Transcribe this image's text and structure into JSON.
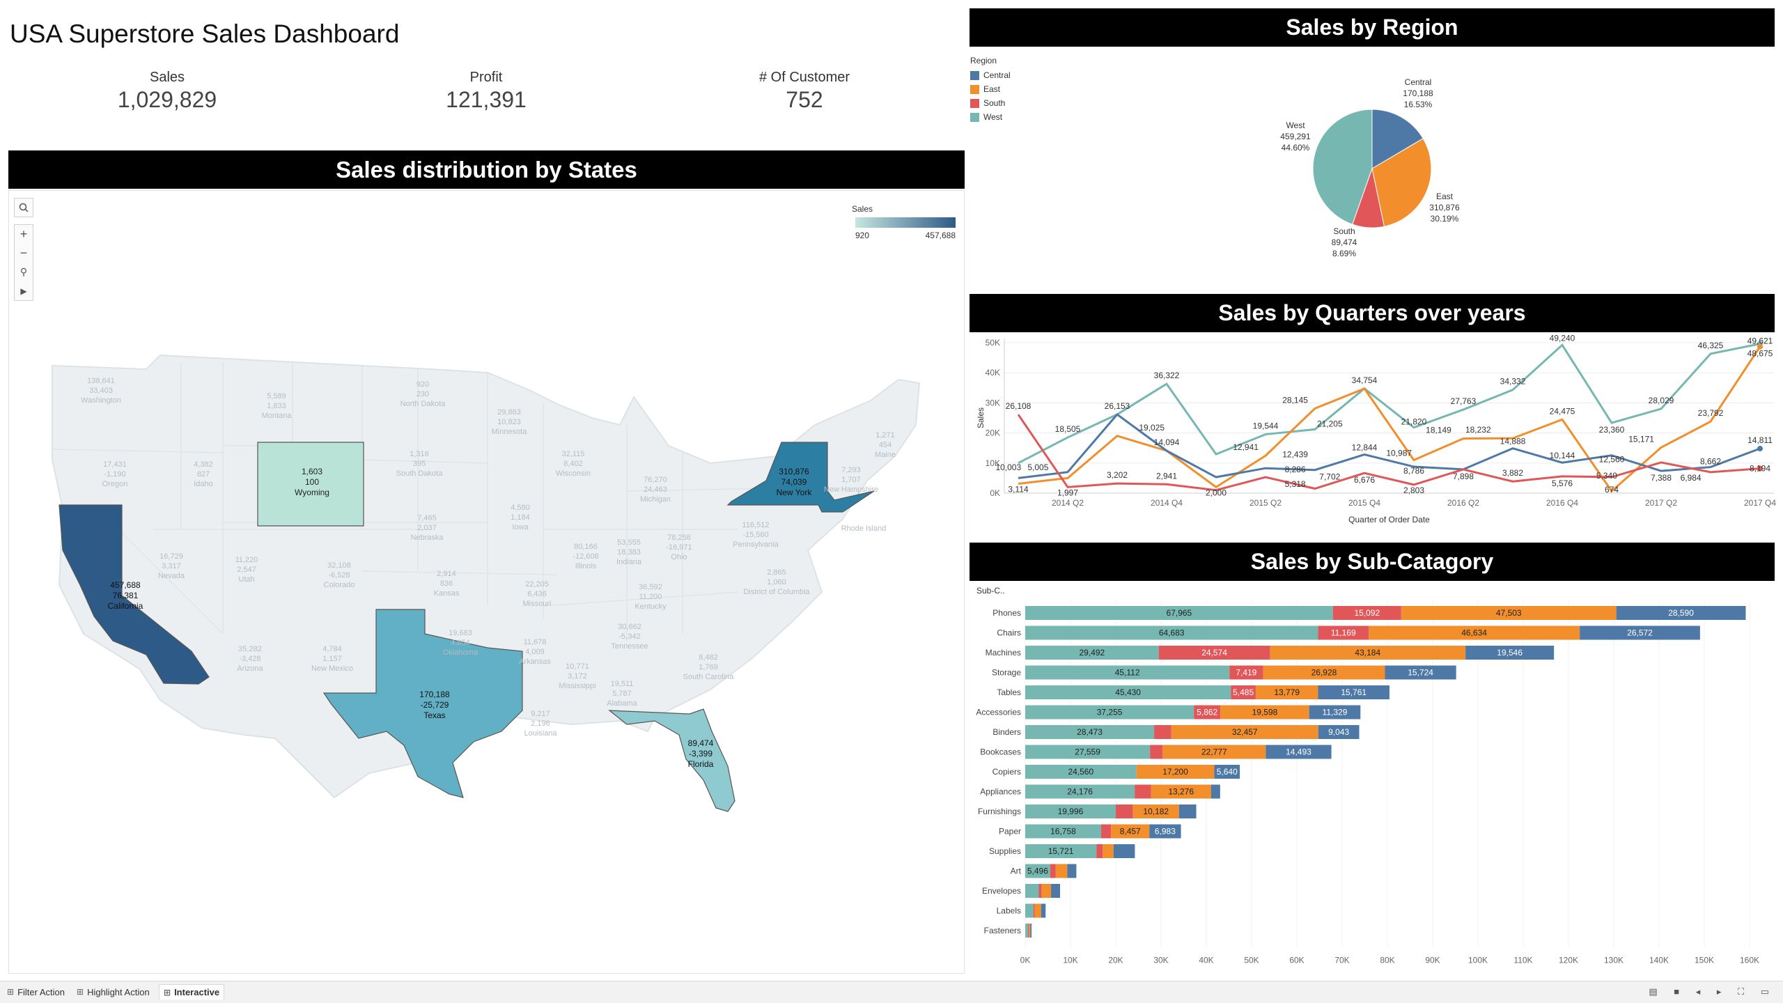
{
  "dashboard": {
    "title": "USA Superstore Sales Dashboard"
  },
  "kpis": [
    {
      "label": "Sales",
      "value": "1,029,829"
    },
    {
      "label": "Profit",
      "value": "121,391"
    },
    {
      "label": "# Of Customer",
      "value": "752"
    }
  ],
  "map": {
    "title": "Sales distribution by States",
    "legend_title": "Sales",
    "legend_min": "920",
    "legend_max": "457,688",
    "colors": {
      "low": "#c6e6de",
      "high": "#2e5a87",
      "faded": "#eceff1"
    },
    "highlighted_states": [
      {
        "name": "California",
        "sales": "457,688",
        "profit": "76,381"
      },
      {
        "name": "New York",
        "sales": "310,876",
        "profit": "74,039"
      },
      {
        "name": "Texas",
        "sales": "170,188",
        "profit": "-25,729"
      },
      {
        "name": "Florida",
        "sales": "89,474",
        "profit": "-3,399"
      },
      {
        "name": "Wyoming",
        "sales": "1,603",
        "profit": "100"
      }
    ],
    "faded_states": [
      {
        "name": "Washington",
        "sales": "138,641",
        "profit": "33,403"
      },
      {
        "name": "Oregon",
        "sales": "17,431",
        "profit": "-1,190"
      },
      {
        "name": "Idaho",
        "sales": "4,382",
        "profit": "827"
      },
      {
        "name": "Montana",
        "sales": "5,589",
        "profit": "1,833"
      },
      {
        "name": "North Dakota",
        "sales": "920",
        "profit": "230"
      },
      {
        "name": "South Dakota",
        "sales": "1,316",
        "profit": "395"
      },
      {
        "name": "Minnesota",
        "sales": "29,863",
        "profit": "10,823"
      },
      {
        "name": "Wisconsin",
        "sales": "32,115",
        "profit": "8,402"
      },
      {
        "name": "Michigan",
        "sales": "76,270",
        "profit": "24,463"
      },
      {
        "name": "Nebraska",
        "sales": "7,465",
        "profit": "2,037"
      },
      {
        "name": "Iowa",
        "sales": "4,580",
        "profit": "1,184"
      },
      {
        "name": "Illinois",
        "sales": "80,166",
        "profit": "-12,608"
      },
      {
        "name": "Indiana",
        "sales": "53,555",
        "profit": "18,383"
      },
      {
        "name": "Ohio",
        "sales": "78,258",
        "profit": "-16,971"
      },
      {
        "name": "Pennsylvania",
        "sales": "116,512",
        "profit": "-15,560"
      },
      {
        "name": "Nevada",
        "sales": "16,729",
        "profit": "3,317"
      },
      {
        "name": "Utah",
        "sales": "11,220",
        "profit": "2,547"
      },
      {
        "name": "Colorado",
        "sales": "32,108",
        "profit": "-6,528"
      },
      {
        "name": "Kansas",
        "sales": "2,914",
        "profit": "836"
      },
      {
        "name": "Missouri",
        "sales": "22,205",
        "profit": "6,436"
      },
      {
        "name": "Kentucky",
        "sales": "36,592",
        "profit": "11,200"
      },
      {
        "name": "Arizona",
        "sales": "35,282",
        "profit": "-3,428"
      },
      {
        "name": "New Mexico",
        "sales": "4,784",
        "profit": "1,157"
      },
      {
        "name": "Oklahoma",
        "sales": "19,683",
        "profit": "4,854"
      },
      {
        "name": "Arkansas",
        "sales": "11,678",
        "profit": "4,009"
      },
      {
        "name": "Tennessee",
        "sales": "30,662",
        "profit": "-5,342"
      },
      {
        "name": "Mississippi",
        "sales": "10,771",
        "profit": "3,172"
      },
      {
        "name": "Alabama",
        "sales": "19,511",
        "profit": "5,787"
      },
      {
        "name": "Louisiana",
        "sales": "9,217",
        "profit": "2,196"
      },
      {
        "name": "South Carolina",
        "sales": "8,482",
        "profit": "1,769"
      },
      {
        "name": "Maine",
        "sales": "1,271",
        "profit": "454"
      },
      {
        "name": "New Hampshire",
        "sales": "7,293",
        "profit": "1,707"
      },
      {
        "name": "Rhode Island",
        "sales": "",
        "profit": ""
      },
      {
        "name": "District of Columbia",
        "sales": "2,865",
        "profit": "1,060"
      }
    ]
  },
  "pie": {
    "title": "Sales by Region",
    "legend_title": "Region",
    "chart_data": {
      "type": "pie",
      "slices": [
        {
          "label": "Central",
          "value": 170188,
          "value_text": "170,188",
          "pct": "16.53%",
          "color": "#4e79a7"
        },
        {
          "label": "East",
          "value": 310876,
          "value_text": "310,876",
          "pct": "30.19%",
          "color": "#f28e2b"
        },
        {
          "label": "South",
          "value": 89474,
          "value_text": "89,474",
          "pct": "8.69%",
          "color": "#e15759"
        },
        {
          "label": "West",
          "value": 459291,
          "value_text": "459,291",
          "pct": "44.60%",
          "color": "#76b7b2"
        }
      ]
    }
  },
  "line": {
    "title": "Sales by Quarters over years",
    "chart_data": {
      "type": "line",
      "xlabel": "Quarter of Order Date",
      "ylabel": "Sales",
      "x_tick_labels": [
        "2014 Q2",
        "2014 Q4",
        "2015 Q2",
        "2015 Q4",
        "2016 Q2",
        "2016 Q4",
        "2017 Q2",
        "2017 Q4"
      ],
      "y_tick_labels": [
        "0K",
        "10K",
        "20K",
        "30K",
        "40K",
        "50K"
      ],
      "ylim": [
        0,
        50000
      ],
      "x": [
        "2014 Q1",
        "2014 Q2",
        "2014 Q3",
        "2014 Q4",
        "2015 Q1",
        "2015 Q2",
        "2015 Q3",
        "2015 Q4",
        "2016 Q1",
        "2016 Q2",
        "2016 Q3",
        "2016 Q4",
        "2017 Q1",
        "2017 Q2",
        "2017 Q3",
        "2017 Q4"
      ],
      "series": [
        {
          "color": "#76b7b2",
          "values": [
            10003,
            18505,
            26153,
            36322,
            12941,
            19544,
            21205,
            34754,
            21820,
            27763,
            34332,
            49240,
            23360,
            28029,
            46325,
            49621
          ]
        },
        {
          "color": "#f28e2b",
          "values": [
            3114,
            5005,
            19025,
            14094,
            2000,
            12439,
            28145,
            34754,
            10987,
            18149,
            18232,
            24475,
            674,
            15171,
            23792,
            48675
          ]
        },
        {
          "color": "#4e79a7",
          "values": [
            5005,
            7000,
            26153,
            14094,
            5318,
            8286,
            7702,
            12844,
            8786,
            7898,
            14888,
            10144,
            12560,
            7388,
            8662,
            14811
          ]
        },
        {
          "color": "#e15759",
          "values": [
            26108,
            1997,
            3202,
            2941,
            1000,
            5318,
            1500,
            6676,
            2803,
            7898,
            3882,
            5576,
            5340,
            10200,
            6984,
            8194
          ]
        }
      ],
      "data_labels": [
        {
          "t": "26,108",
          "xi": 0,
          "y": 26108,
          "dy": -8
        },
        {
          "t": "18,505",
          "xi": 1,
          "y": 18505,
          "dy": -8
        },
        {
          "t": "26,153",
          "xi": 2,
          "y": 26153,
          "dy": -8
        },
        {
          "t": "36,322",
          "xi": 3,
          "y": 36322,
          "dy": -8
        },
        {
          "t": "19,025",
          "xi": 2.7,
          "y": 19025,
          "dy": -8
        },
        {
          "t": "14,094",
          "xi": 3,
          "y": 14094,
          "dy": -8
        },
        {
          "t": "10,003",
          "xi": -0.2,
          "y": 10003,
          "dy": 10
        },
        {
          "t": "5,005",
          "xi": 0.4,
          "y": 10003,
          "dy": 10
        },
        {
          "t": "3,114",
          "xi": 0,
          "y": 3114,
          "dy": 12
        },
        {
          "t": "1,997",
          "xi": 1,
          "y": 1997,
          "dy": 12
        },
        {
          "t": "3,202",
          "xi": 2,
          "y": 3202,
          "dy": -8
        },
        {
          "t": "2,941",
          "xi": 3,
          "y": 2941,
          "dy": -8
        },
        {
          "t": "2,000",
          "xi": 4,
          "y": 2000,
          "dy": 12
        },
        {
          "t": "12,941",
          "xi": 4.6,
          "y": 12941,
          "dy": -6
        },
        {
          "t": "19,544",
          "xi": 5,
          "y": 19544,
          "dy": -8
        },
        {
          "t": "12,439",
          "xi": 5.6,
          "y": 12439,
          "dy": 2
        },
        {
          "t": "8,286",
          "xi": 5.6,
          "y": 8286,
          "dy": 6
        },
        {
          "t": "5,318",
          "xi": 5.6,
          "y": 5318,
          "dy": 14
        },
        {
          "t": "28,145",
          "xi": 5.6,
          "y": 28145,
          "dy": -8
        },
        {
          "t": "21,205",
          "xi": 6.3,
          "y": 21205,
          "dy": -4
        },
        {
          "t": "7,702",
          "xi": 6.3,
          "y": 7702,
          "dy": 14
        },
        {
          "t": "34,754",
          "xi": 7,
          "y": 34754,
          "dy": -8
        },
        {
          "t": "12,844",
          "xi": 7,
          "y": 12844,
          "dy": -6
        },
        {
          "t": "6,676",
          "xi": 7,
          "y": 6676,
          "dy": 14
        },
        {
          "t": "10,987",
          "xi": 7.7,
          "y": 10987,
          "dy": -6
        },
        {
          "t": "21,820",
          "xi": 8,
          "y": 21820,
          "dy": -4
        },
        {
          "t": "8,786",
          "xi": 8,
          "y": 8786,
          "dy": 10
        },
        {
          "t": "2,803",
          "xi": 8,
          "y": 2803,
          "dy": 12
        },
        {
          "t": "27,763",
          "xi": 9,
          "y": 27763,
          "dy": -8
        },
        {
          "t": "18,149",
          "xi": 8.5,
          "y": 18149,
          "dy": -8
        },
        {
          "t": "18,232",
          "xi": 9.3,
          "y": 18232,
          "dy": -8
        },
        {
          "t": "7,898",
          "xi": 9,
          "y": 7898,
          "dy": 14
        },
        {
          "t": "34,332",
          "xi": 10,
          "y": 34332,
          "dy": -8
        },
        {
          "t": "14,888",
          "xi": 10,
          "y": 14888,
          "dy": -6
        },
        {
          "t": "3,882",
          "xi": 10,
          "y": 3882,
          "dy": -8
        },
        {
          "t": "49,240",
          "xi": 11,
          "y": 49240,
          "dy": -6
        },
        {
          "t": "24,475",
          "xi": 11,
          "y": 24475,
          "dy": -8
        },
        {
          "t": "10,144",
          "xi": 11,
          "y": 10144,
          "dy": -6
        },
        {
          "t": "5,576",
          "xi": 11,
          "y": 5576,
          "dy": 14
        },
        {
          "t": "23,360",
          "xi": 12,
          "y": 23360,
          "dy": 14
        },
        {
          "t": "15,171",
          "xi": 12.6,
          "y": 15171,
          "dy": -8
        },
        {
          "t": "12,560",
          "xi": 12,
          "y": 12560,
          "dy": 10
        },
        {
          "t": "5,340",
          "xi": 11.9,
          "y": 5340,
          "dy": 2
        },
        {
          "t": "674",
          "xi": 12,
          "y": 674,
          "dy": 2
        },
        {
          "t": "28,029",
          "xi": 13,
          "y": 28029,
          "dy": -8
        },
        {
          "t": "7,388",
          "xi": 13,
          "y": 7388,
          "dy": 14
        },
        {
          "t": "8,662",
          "xi": 14,
          "y": 8662,
          "dy": -4
        },
        {
          "t": "6,984",
          "xi": 13.6,
          "y": 6984,
          "dy": 12
        },
        {
          "t": "46,325",
          "xi": 14,
          "y": 46325,
          "dy": -8
        },
        {
          "t": "23,792",
          "xi": 14,
          "y": 23792,
          "dy": -8
        },
        {
          "t": "49,621",
          "xi": 15,
          "y": 49621,
          "dy": 0
        },
        {
          "t": "48,675",
          "xi": 15,
          "y": 48675,
          "dy": 14
        },
        {
          "t": "14,811",
          "xi": 15,
          "y": 14811,
          "dy": -8
        },
        {
          "t": "8,194",
          "xi": 15,
          "y": 8194,
          "dy": 4
        }
      ]
    }
  },
  "bars": {
    "title": "Sales by Sub-Catagory",
    "header_label": "Sub-C..",
    "chart_data": {
      "type": "bar",
      "orientation": "horizontal-stacked",
      "xlabel": "Sales",
      "xlim": [
        0,
        160000
      ],
      "x_tick_labels": [
        "0K",
        "10K",
        "20K",
        "30K",
        "40K",
        "50K",
        "60K",
        "70K",
        "80K",
        "90K",
        "100K",
        "110K",
        "120K",
        "130K",
        "140K",
        "150K",
        "160K"
      ],
      "series_colors": {
        "West": "#76b7b2",
        "South": "#e15759",
        "East": "#f28e2b",
        "Central": "#4e79a7"
      },
      "rows": [
        {
          "cat": "Phones",
          "West": 67965,
          "South": 15092,
          "East": 47503,
          "Central": 28590,
          "labels": [
            "67,965",
            "15,092",
            "47,503",
            "28,590"
          ]
        },
        {
          "cat": "Chairs",
          "West": 64683,
          "South": 11169,
          "East": 46634,
          "Central": 26572,
          "labels": [
            "64,683",
            "11,169",
            "46,634",
            "26,572"
          ]
        },
        {
          "cat": "Machines",
          "West": 29492,
          "South": 24574,
          "East": 43184,
          "Central": 19546,
          "labels": [
            "29,492",
            "24,574",
            "43,184",
            "19,546"
          ]
        },
        {
          "cat": "Storage",
          "West": 45112,
          "South": 7419,
          "East": 26928,
          "Central": 15724,
          "labels": [
            "45,112",
            "7,419",
            "26,928",
            "15,724"
          ]
        },
        {
          "cat": "Tables",
          "West": 45430,
          "South": 5485,
          "East": 13779,
          "Central": 15761,
          "labels": [
            "45,430",
            "5,485",
            "13,779",
            "15,761"
          ]
        },
        {
          "cat": "Accessories",
          "West": 37255,
          "South": 5862,
          "East": 19598,
          "Central": 11329,
          "labels": [
            "37,255",
            "5,862",
            "19,598",
            "11,329"
          ]
        },
        {
          "cat": "Binders",
          "West": 28473,
          "South": 3800,
          "East": 32457,
          "Central": 9043,
          "labels": [
            "28,473",
            "",
            "32,457",
            "9,043"
          ]
        },
        {
          "cat": "Bookcases",
          "West": 27559,
          "South": 2800,
          "East": 22777,
          "Central": 14493,
          "labels": [
            "27,559",
            "",
            "22,777",
            "14,493"
          ]
        },
        {
          "cat": "Copiers",
          "West": 24560,
          "South": 0,
          "East": 17200,
          "Central": 5640,
          "labels": [
            "24,560",
            "",
            "17,200",
            "5,640"
          ]
        },
        {
          "cat": "Appliances",
          "West": 24176,
          "South": 3600,
          "East": 13276,
          "Central": 2000,
          "labels": [
            "24,176",
            "",
            "13,276",
            ""
          ]
        },
        {
          "cat": "Furnishings",
          "West": 19996,
          "South": 3800,
          "East": 10182,
          "Central": 3800,
          "labels": [
            "19,996",
            "",
            "10,182",
            ""
          ]
        },
        {
          "cat": "Paper",
          "West": 16758,
          "South": 2200,
          "East": 8457,
          "Central": 6983,
          "labels": [
            "16,758",
            "",
            "8,457",
            "6,983"
          ]
        },
        {
          "cat": "Supplies",
          "West": 15721,
          "South": 1400,
          "East": 2400,
          "Central": 4700,
          "labels": [
            "15,721",
            "",
            "",
            ""
          ]
        },
        {
          "cat": "Art",
          "West": 5496,
          "South": 1200,
          "East": 2600,
          "Central": 2000,
          "labels": [
            "5,496",
            "",
            "",
            ""
          ]
        },
        {
          "cat": "Envelopes",
          "West": 3000,
          "South": 600,
          "East": 2100,
          "Central": 2000,
          "labels": [
            "",
            "",
            "",
            ""
          ]
        },
        {
          "cat": "Labels",
          "West": 1800,
          "South": 300,
          "East": 1400,
          "Central": 1000,
          "labels": [
            "",
            "",
            "",
            ""
          ]
        },
        {
          "cat": "Fasteners",
          "West": 600,
          "South": 200,
          "East": 300,
          "Central": 300,
          "labels": [
            "",
            "",
            "",
            ""
          ]
        }
      ]
    }
  },
  "tabs": [
    {
      "label": "Filter Action",
      "active": false
    },
    {
      "label": "Highlight Action",
      "active": false
    },
    {
      "label": "Interactive",
      "active": true
    }
  ],
  "tab_icons": {
    "sheet": "⊞"
  },
  "nav_icons": "▤ ■ ◂ ▸ ⛶ ▭"
}
